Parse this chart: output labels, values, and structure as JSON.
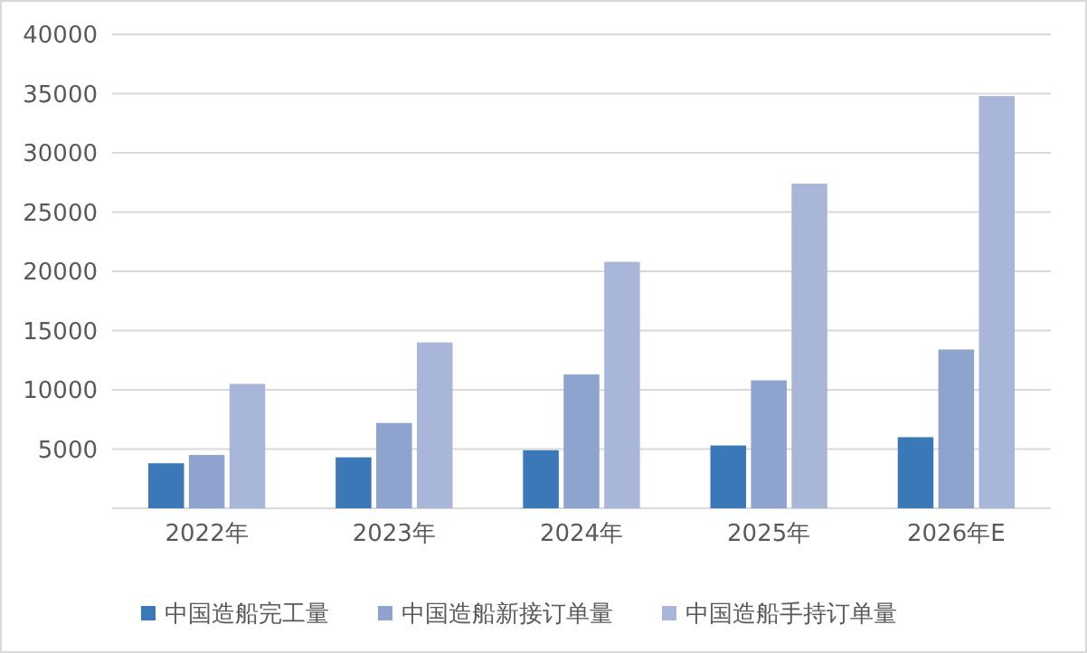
{
  "chart_data": {
    "type": "bar",
    "categories": [
      "2022年",
      "2023年",
      "2024年",
      "2025年",
      "2026年E"
    ],
    "series": [
      {
        "name": "中国造船完工量",
        "color": "#3a78b8",
        "values": [
          3800,
          4300,
          4900,
          5300,
          6000
        ]
      },
      {
        "name": "中国造船新接订单量",
        "color": "#8fa3cf",
        "values": [
          4500,
          7200,
          11300,
          10800,
          13400
        ]
      },
      {
        "name": "中国造船手持订单量",
        "color": "#a8b6da",
        "values": [
          10500,
          14000,
          20800,
          27400,
          34800
        ]
      }
    ],
    "ylim": [
      0,
      40000
    ],
    "yticks": [
      5000,
      10000,
      15000,
      20000,
      25000,
      30000,
      35000,
      40000
    ],
    "grid": "y",
    "legend": "bottom"
  }
}
